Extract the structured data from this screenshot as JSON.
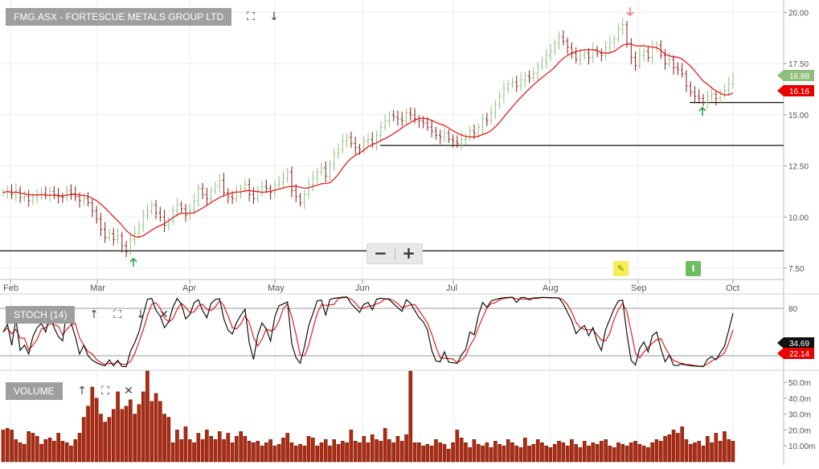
{
  "main_panel": {
    "title": "FMG.ASX - FORTESCUE METALS GROUP LTD",
    "y_ticks": [
      "20.00",
      "17.50",
      "15.00",
      "12.50",
      "10.00",
      "7.50"
    ],
    "x_ticks": [
      "Feb",
      "Mar",
      "Apr",
      "May",
      "Jun",
      "Jul",
      "Aug",
      "Sep",
      "Oct"
    ],
    "last_price_label": "16.88",
    "ma_label": "16.16",
    "annotation_badge": "I",
    "icons": {
      "expand": "expand-icon",
      "down": "arrow-down-icon",
      "edit": "pencil-icon"
    },
    "zoom": {
      "minus": "−",
      "plus": "+"
    }
  },
  "stoch_panel": {
    "title": "STOCH (14)",
    "y_ticks": [
      "80",
      "20"
    ],
    "k_label": "34.69",
    "d_label": "22.14"
  },
  "volume_panel": {
    "title": "VOLUME",
    "y_ticks": [
      "50.0m",
      "40.0m",
      "30.0m",
      "20.0m",
      "10.00m"
    ]
  },
  "colors": {
    "up_candle": "#8cbf7a",
    "down_candle": "#8b1a1a",
    "ma_line": "#e21f1f",
    "stoch_k": "#111111",
    "stoch_d": "#e21f1f",
    "volume_bar": "#b22a0f",
    "price_tag": "#8dbf7b",
    "ma_tag": "#e60000"
  },
  "chart_data": [
    {
      "type": "candlestick",
      "title": "FMG.ASX - FORTESCUE METALS GROUP LTD",
      "x_range": [
        "Jan",
        "Oct"
      ],
      "ylim": [
        7.0,
        20.8
      ],
      "closes": [
        11.2,
        11.3,
        11.1,
        11.3,
        10.95,
        11.0,
        10.8,
        11.0,
        11.1,
        11.15,
        11.05,
        11.25,
        11.1,
        11.0,
        10.95,
        11.3,
        11.15,
        11.0,
        10.8,
        10.9,
        10.7,
        10.3,
        9.9,
        9.4,
        9.0,
        9.2,
        8.9,
        9.1,
        8.6,
        8.3,
        8.9,
        9.2,
        9.6,
        10.1,
        10.3,
        10.6,
        10.2,
        10.0,
        9.6,
        9.8,
        10.3,
        10.6,
        10.4,
        10.1,
        10.3,
        10.8,
        11.4,
        11.1,
        10.9,
        11.3,
        11.5,
        11.8,
        11.2,
        11.0,
        10.9,
        11.2,
        11.4,
        11.6,
        11.1,
        10.9,
        11.3,
        11.5,
        11.4,
        11.2,
        11.6,
        11.7,
        11.9,
        12.2,
        11.3,
        11.0,
        10.7,
        11.1,
        11.6,
        11.9,
        12.2,
        12.4,
        12.0,
        12.6,
        13.1,
        13.3,
        13.7,
        13.9,
        13.6,
        13.4,
        13.3,
        13.7,
        13.8,
        13.6,
        14.0,
        14.4,
        14.7,
        15.0,
        14.9,
        14.8,
        14.7,
        15.1,
        15.0,
        14.8,
        14.7,
        14.6,
        14.4,
        14.2,
        14.0,
        13.9,
        14.1,
        13.8,
        13.7,
        13.6,
        13.8,
        13.9,
        14.2,
        14.1,
        14.4,
        14.8,
        14.7,
        15.1,
        15.5,
        15.9,
        16.3,
        16.5,
        16.6,
        16.4,
        16.7,
        16.9,
        16.8,
        17.0,
        17.4,
        17.6,
        17.9,
        18.1,
        18.5,
        18.8,
        18.6,
        18.3,
        18.0,
        17.7,
        17.9,
        18.0,
        17.8,
        18.2,
        18.0,
        17.9,
        18.3,
        18.5,
        18.7,
        19.2,
        19.4,
        18.5,
        17.8,
        17.4,
        17.9,
        18.1,
        17.8,
        18.3,
        18.4,
        17.9,
        17.5,
        17.7,
        17.3,
        17.2,
        17.0,
        16.4,
        16.1,
        15.9,
        15.8,
        15.6,
        15.9,
        16.0,
        15.8,
        16.0,
        16.2,
        16.5,
        16.88
      ],
      "ma_line": {
        "label": "16.16"
      },
      "support_levels": [
        8.35,
        13.5,
        15.6
      ],
      "signals": [
        {
          "date": "Mar",
          "dir": "up"
        },
        {
          "date": "Aug",
          "dir": "down"
        },
        {
          "date": "Sep",
          "dir": "up"
        }
      ]
    },
    {
      "type": "line",
      "title": "STOCH (14)",
      "ylim": [
        0,
        100
      ],
      "reference_lines": [
        80,
        20
      ],
      "series": [
        {
          "name": "%K",
          "last": 34.69
        },
        {
          "name": "%D",
          "last": 22.14
        }
      ]
    },
    {
      "type": "bar",
      "title": "VOLUME",
      "ylim": [
        0,
        62000000
      ],
      "values_m": [
        20,
        21,
        20,
        14,
        12,
        11,
        19,
        18,
        16,
        11,
        14,
        15,
        13,
        18,
        13,
        12,
        10,
        14,
        18,
        28,
        35,
        47,
        40,
        30,
        25,
        28,
        33,
        44,
        33,
        35,
        39,
        30,
        36,
        44,
        62,
        38,
        43,
        38,
        30,
        28,
        12,
        20,
        14,
        22,
        14,
        12,
        18,
        14,
        20,
        16,
        14,
        19,
        14,
        18,
        12,
        16,
        19,
        16,
        13,
        12,
        13,
        10,
        12,
        14,
        10,
        11,
        15,
        18,
        12,
        10,
        11,
        10,
        16,
        15,
        10,
        12,
        14,
        10,
        14,
        11,
        13,
        12,
        20,
        13,
        12,
        16,
        12,
        17,
        14,
        13,
        21,
        14,
        12,
        16,
        13,
        17,
        57,
        12,
        12,
        10,
        11,
        10,
        14,
        12,
        11,
        8,
        12,
        20,
        15,
        12,
        9,
        14,
        11,
        10,
        12,
        9,
        13,
        11,
        10,
        14,
        12,
        10,
        9,
        15,
        10,
        11,
        14,
        12,
        10,
        9,
        11,
        13,
        12,
        10,
        14,
        11,
        9,
        13,
        10,
        12,
        11,
        13,
        14,
        10,
        9,
        12,
        11,
        10,
        12,
        13,
        11,
        10,
        9,
        12,
        14,
        13,
        16,
        17,
        20,
        18,
        22,
        14,
        11,
        12,
        13,
        10,
        16,
        12,
        18,
        13,
        19,
        14,
        13,
        12,
        11,
        16,
        28,
        14,
        12,
        18,
        12,
        10,
        13,
        18,
        11,
        14,
        10,
        12,
        18,
        8,
        2
      ]
    }
  ]
}
